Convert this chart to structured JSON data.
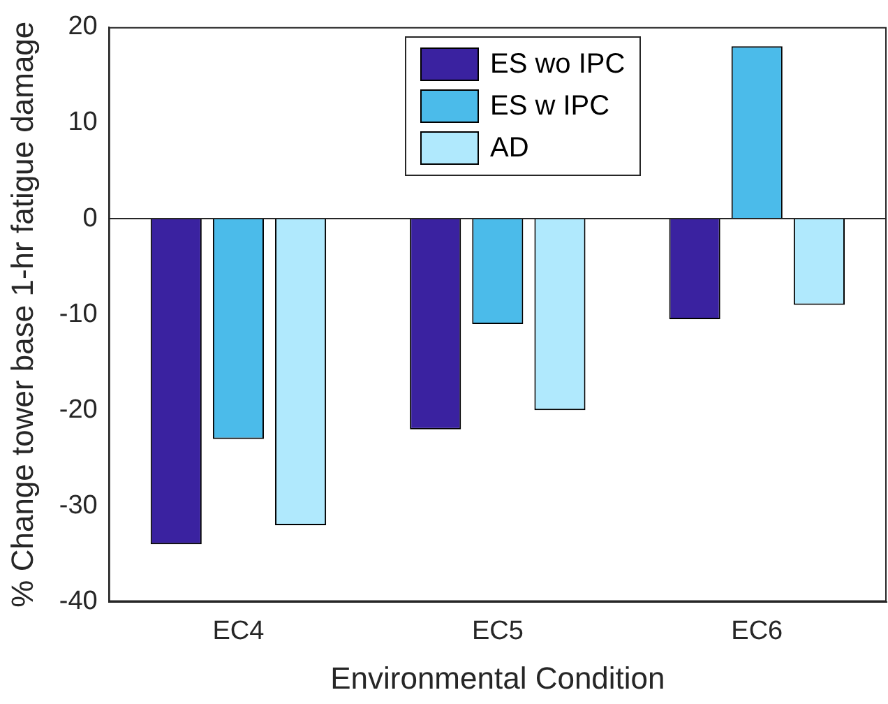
{
  "chart_data": {
    "type": "bar",
    "xlabel": "Environmental Condition",
    "ylabel": "% Change tower base 1-hr fatigue damage",
    "categories": [
      "EC4",
      "EC5",
      "EC6"
    ],
    "series": [
      {
        "name": "ES wo IPC",
        "color": "#3a22a0",
        "values": [
          -34,
          -22,
          -10.5
        ]
      },
      {
        "name": "ES w IPC",
        "color": "#4bbbea",
        "values": [
          -23,
          -11,
          18
        ]
      },
      {
        "name": "AD",
        "color": "#b0e9fd",
        "values": [
          -32,
          -20,
          -9
        ]
      }
    ],
    "ylim": [
      -40,
      20
    ],
    "yticks": [
      -40,
      -30,
      -20,
      -10,
      0,
      10,
      20
    ],
    "grid": false,
    "legend": "top",
    "ref_lines": [
      {
        "axis": "y",
        "value": 0,
        "color": "#262626"
      }
    ]
  }
}
